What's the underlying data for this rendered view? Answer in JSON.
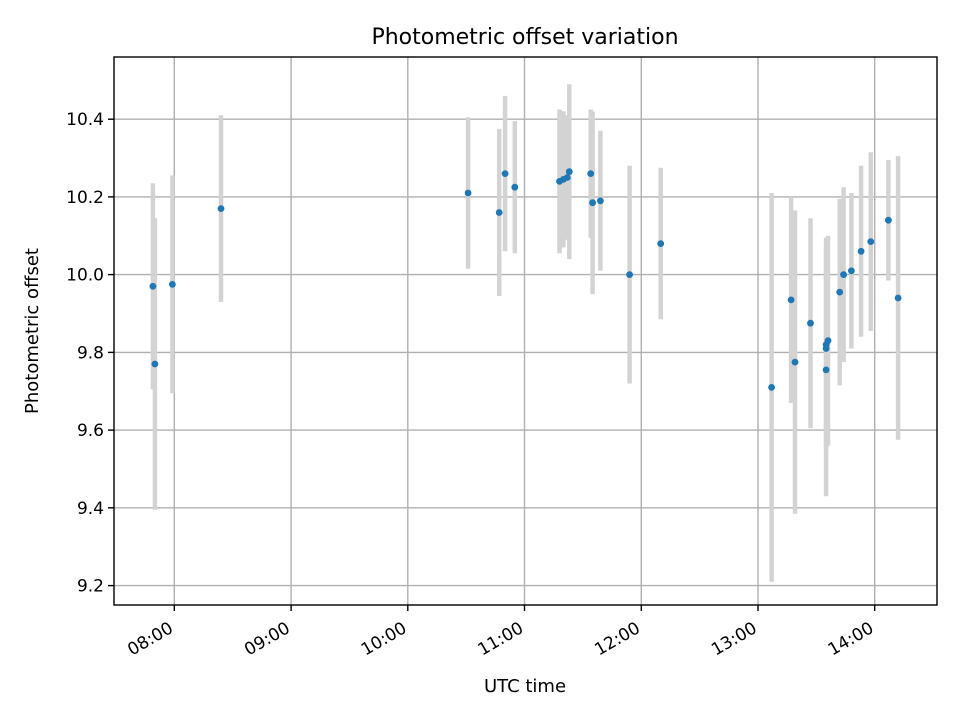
{
  "chart_data": {
    "type": "scatter",
    "title": "Photometric offset variation",
    "xlabel": "UTC time",
    "ylabel": "Photometric offset",
    "x_axis": "time",
    "xlim": [
      "07:29",
      "14:32"
    ],
    "ylim": [
      9.15,
      10.56
    ],
    "xticks": [
      "08:00",
      "09:00",
      "10:00",
      "11:00",
      "12:00",
      "13:00",
      "14:00"
    ],
    "yticks": [
      9.2,
      9.4,
      9.6,
      9.8,
      10.0,
      10.2,
      10.4
    ],
    "grid": true,
    "legend": "none",
    "colors": {
      "points": "#1f77b4",
      "errorbars": "#d3d3d3"
    },
    "series": [
      {
        "points": [
          {
            "x": "07:49",
            "y": 9.97,
            "err": 0.265
          },
          {
            "x": "07:50",
            "y": 9.77,
            "err": 0.375
          },
          {
            "x": "07:59",
            "y": 9.975,
            "err": 0.28
          },
          {
            "x": "08:24",
            "y": 10.17,
            "err": 0.24
          },
          {
            "x": "10:31",
            "y": 10.21,
            "err": 0.195
          },
          {
            "x": "10:47",
            "y": 10.16,
            "err": 0.215
          },
          {
            "x": "10:50",
            "y": 10.26,
            "err": 0.2
          },
          {
            "x": "10:55",
            "y": 10.225,
            "err": 0.17
          },
          {
            "x": "11:18",
            "y": 10.24,
            "err": 0.185
          },
          {
            "x": "11:20",
            "y": 10.245,
            "err": 0.175
          },
          {
            "x": "11:22",
            "y": 10.25,
            "err": 0.16
          },
          {
            "x": "11:23",
            "y": 10.265,
            "err": 0.225
          },
          {
            "x": "11:34",
            "y": 10.26,
            "err": 0.165
          },
          {
            "x": "11:35",
            "y": 10.185,
            "err": 0.235
          },
          {
            "x": "11:39",
            "y": 10.19,
            "err": 0.18
          },
          {
            "x": "11:54",
            "y": 10.0,
            "err": 0.28
          },
          {
            "x": "12:10",
            "y": 10.08,
            "err": 0.195
          },
          {
            "x": "13:07",
            "y": 9.71,
            "err": 0.5
          },
          {
            "x": "13:17",
            "y": 9.935,
            "err": 0.265
          },
          {
            "x": "13:19",
            "y": 9.775,
            "err": 0.39
          },
          {
            "x": "13:27",
            "y": 9.875,
            "err": 0.27
          },
          {
            "x": "13:35",
            "y": 9.755,
            "err": 0.325
          },
          {
            "x": "13:35",
            "y": 9.81,
            "err": 0.25
          },
          {
            "x": "13:35",
            "y": 9.82,
            "err": 0.275
          },
          {
            "x": "13:36",
            "y": 9.83,
            "err": 0.27
          },
          {
            "x": "13:42",
            "y": 9.955,
            "err": 0.24
          },
          {
            "x": "13:44",
            "y": 10.0,
            "err": 0.225
          },
          {
            "x": "13:48",
            "y": 10.01,
            "err": 0.2
          },
          {
            "x": "13:53",
            "y": 10.06,
            "err": 0.22
          },
          {
            "x": "13:58",
            "y": 10.085,
            "err": 0.23
          },
          {
            "x": "14:07",
            "y": 10.14,
            "err": 0.155
          },
          {
            "x": "14:12",
            "y": 9.94,
            "err": 0.365
          }
        ]
      }
    ]
  }
}
